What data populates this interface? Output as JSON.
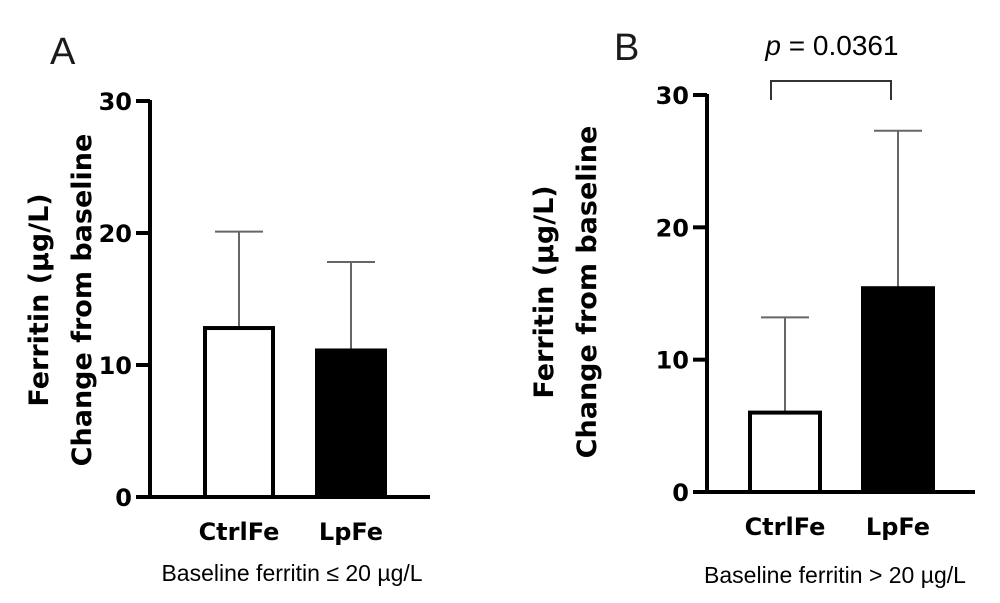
{
  "chart_data": [
    {
      "type": "bar",
      "panel": "A",
      "ylabel_line1": "Ferritin (µg/L)",
      "ylabel_line2": "Change from baseline",
      "xlabel": "Baseline ferritin ≤ 20 µg/L",
      "categories": [
        "CtrlFe",
        "LpFe"
      ],
      "values": [
        12.8,
        11.1
      ],
      "error_upper": [
        20.1,
        17.8
      ],
      "bar_fill": [
        "#ffffff",
        "#000000"
      ],
      "yticks": [
        "0",
        "10",
        "20",
        "30"
      ],
      "ylim": [
        0,
        30
      ],
      "grid": false
    },
    {
      "type": "bar",
      "panel": "B",
      "ylabel_line1": "Ferritin (µg/L)",
      "ylabel_line2": "Change from baseline",
      "xlabel": "Baseline ferritin > 20 µg/L",
      "categories": [
        "CtrlFe",
        "LpFe"
      ],
      "values": [
        6.0,
        15.4
      ],
      "error_upper": [
        13.2,
        27.3
      ],
      "bar_fill": [
        "#ffffff",
        "#000000"
      ],
      "yticks": [
        "0",
        "10",
        "20",
        "30"
      ],
      "ylim": [
        0,
        30
      ],
      "grid": false,
      "annotation": {
        "p_symbol": "p",
        "p_value": " = 0.0361"
      }
    }
  ]
}
